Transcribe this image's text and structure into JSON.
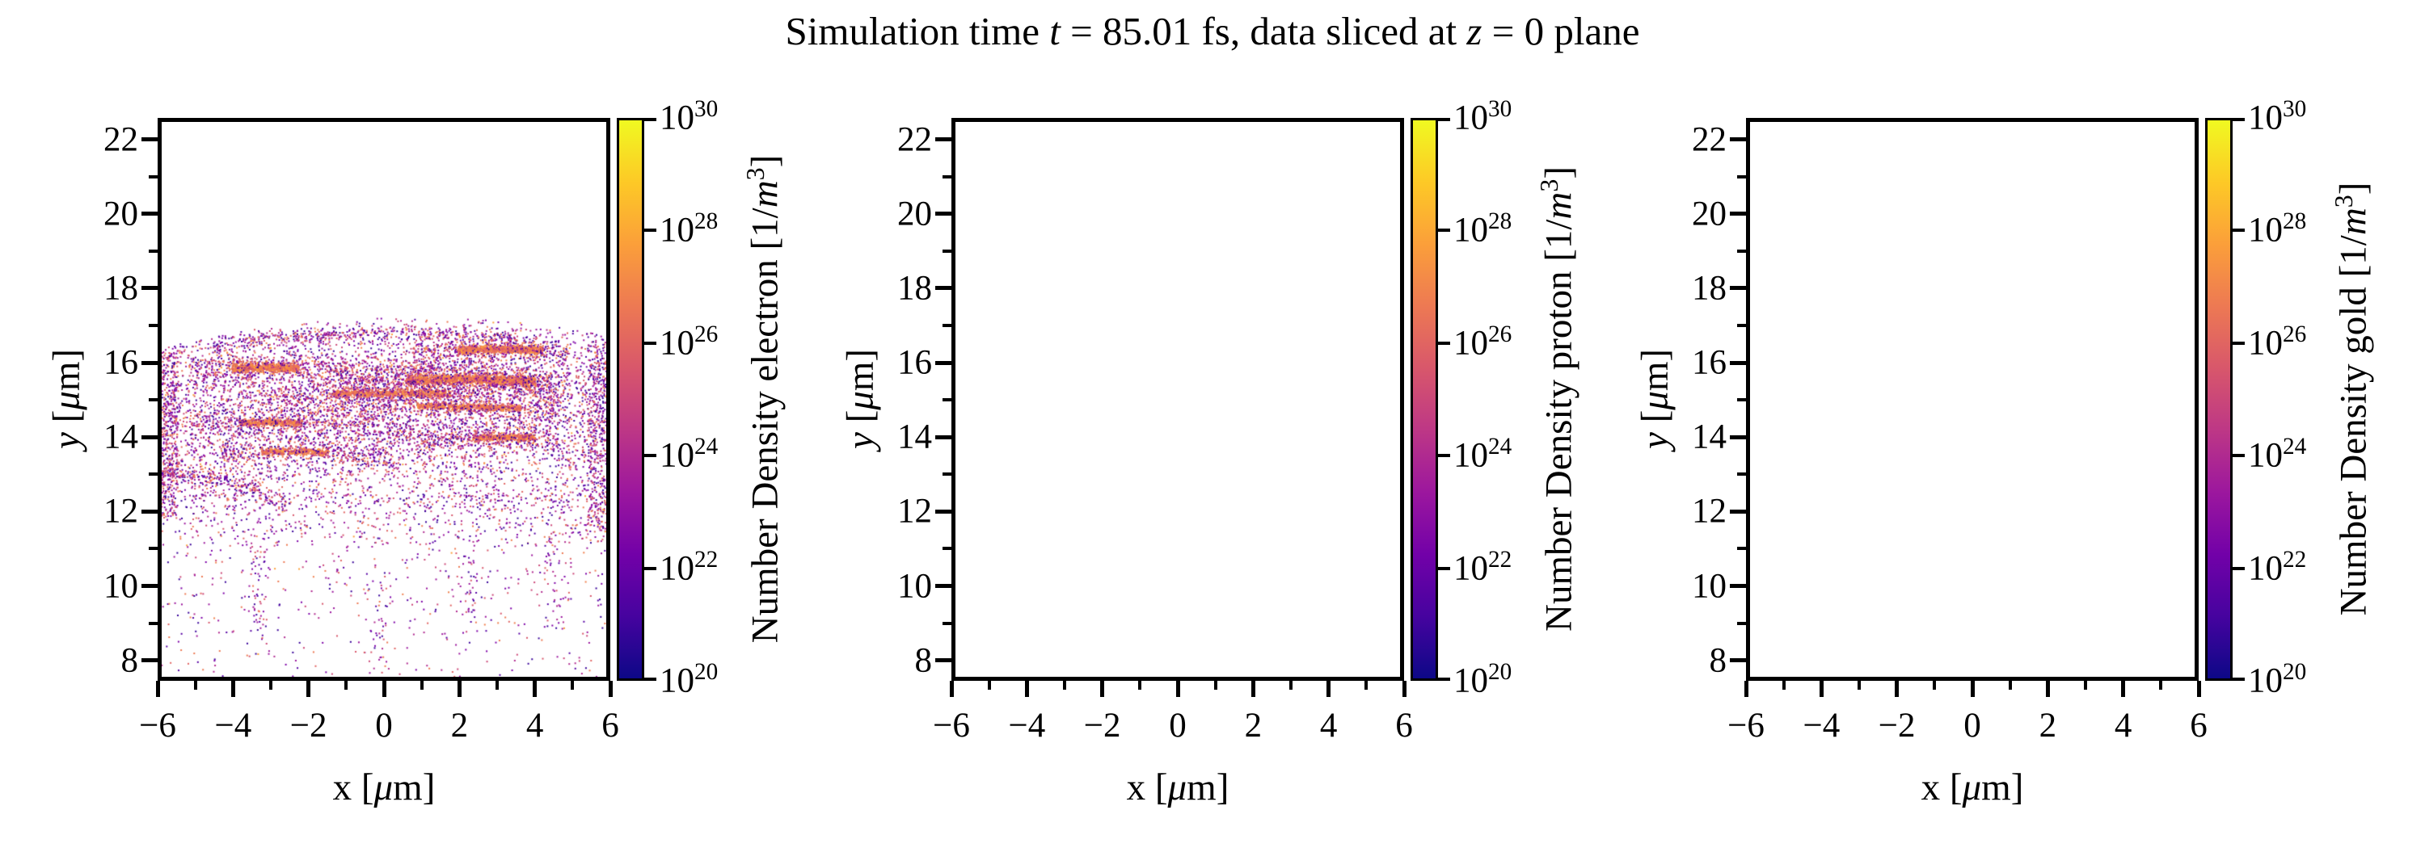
{
  "title": {
    "full": "Simulation time t = 85.01 fs, data sliced at z = 0 plane",
    "prefix": "Simulation time ",
    "t_symbol": "t",
    "middle": " = 85.01 fs, data sliced at ",
    "z_symbol": "z",
    "suffix": " = 0 plane"
  },
  "colors": {
    "background": "#ffffff",
    "spine": "#000000",
    "tick": "#000000",
    "text": "#000000",
    "plasma_stops": [
      "#0d0887",
      "#46039f",
      "#7201a8",
      "#9c179e",
      "#bd3786",
      "#d8576b",
      "#ed7953",
      "#fb9f3a",
      "#fdc926",
      "#f0f921"
    ]
  },
  "axes": {
    "xlim": [
      -6,
      6
    ],
    "ylim": [
      7.45,
      22.58
    ],
    "x_major": [
      -6,
      -4,
      -2,
      0,
      2,
      4,
      6
    ],
    "x_major_labels": [
      "−6",
      "−4",
      "−2",
      "0",
      "2",
      "4",
      "6"
    ],
    "x_minor": [
      -5,
      -3,
      -1,
      1,
      3,
      5
    ],
    "y_major": [
      8,
      10,
      12,
      14,
      16,
      18,
      20,
      22
    ],
    "y_major_labels": [
      "8",
      "10",
      "12",
      "14",
      "16",
      "18",
      "20",
      "22"
    ],
    "y_minor": [
      9,
      11,
      13,
      15,
      17,
      19,
      21
    ],
    "cbar_base": "10",
    "cbar_tick_exponents": [
      30,
      28,
      26,
      24,
      22,
      20
    ]
  },
  "panels": [
    {
      "species": "electron",
      "xlabel": "x [μm]",
      "ylabel": "y [μm]",
      "xlabel_var": "x",
      "ylabel_var": "y",
      "unit_open": " [",
      "unit_mu": "μ",
      "unit_close": "m]",
      "cbar_label": "Number Density electron [1/m³]",
      "cbar_text": "Number Density electron [1/",
      "cbar_var": "m",
      "cbar_sup": "3",
      "cbar_end": "]"
    },
    {
      "species": "proton",
      "xlabel": "x [μm]",
      "ylabel": "y [μm]",
      "xlabel_var": "x",
      "ylabel_var": "y",
      "unit_open": " [",
      "unit_mu": "μ",
      "unit_close": "m]",
      "cbar_label": "Number Density proton [1/m³]",
      "cbar_text": "Number Density proton [1/",
      "cbar_var": "m",
      "cbar_sup": "3",
      "cbar_end": "]"
    },
    {
      "species": "gold",
      "xlabel": "x [μm]",
      "ylabel": "y [μm]",
      "xlabel_var": "x",
      "ylabel_var": "y",
      "unit_open": " [",
      "unit_mu": "μ",
      "unit_close": "m]",
      "cbar_label": "Number Density gold [1/m³]",
      "cbar_text": "Number Density gold [1/",
      "cbar_var": "m",
      "cbar_sup": "3",
      "cbar_end": "]"
    }
  ],
  "chart_data": [
    {
      "type": "scatter",
      "species": "electron",
      "xlabel": "x [μm]",
      "ylabel": "y [μm]",
      "xlim": [
        -6,
        6
      ],
      "ylim": [
        7.45,
        22.58
      ],
      "colorbar": {
        "label": "Number Density electron [1/m³]",
        "scale": "log",
        "vmin": 1e+20,
        "vmax": 1e+30,
        "ticks": [
          1e+30,
          1e+28,
          1e+26,
          1e+24,
          1e+22,
          1e+20
        ],
        "cmap": "plasma"
      },
      "description": "Sparse 2px-cell density scatter; arc-shaped shell bands with bright orange cores between y=13.4 and y=16.9, diffuse purple halo cloud y≈11–17.2, sparse tail down to y≈7.5, empty above y≈17.3",
      "data_model": {
        "seed": 1337,
        "point_size": 2,
        "palette_sparse": [
          [
            "#3a049a",
            13
          ],
          [
            "#5601a4",
            11
          ],
          [
            "#7e03a8",
            17
          ],
          [
            "#9c179e",
            16
          ],
          [
            "#b12a90",
            14
          ],
          [
            "#cc4778",
            11
          ],
          [
            "#d8576b",
            7
          ],
          [
            "#e16462",
            6
          ],
          [
            "#ed7953",
            5
          ]
        ],
        "palette_core": [
          [
            "#ed7953",
            28
          ],
          [
            "#f0804f",
            30
          ],
          [
            "#fb9f3a",
            18
          ],
          [
            "#e16462",
            24
          ]
        ],
        "bands": [
          {
            "apex_x": 0.3,
            "apex_y": 16.82,
            "curv": 0.013,
            "x0": -4.6,
            "x1": 3.6,
            "sigma": 0.09,
            "n": 430,
            "core_frac": 0.15
          },
          {
            "apex_x": 3.0,
            "apex_y": 16.38,
            "curv": 0.03,
            "x0": 0.8,
            "x1": 5.0,
            "sigma": 0.2,
            "n": 450,
            "core_frac": 0.2,
            "core": {
              "x0": 2.0,
              "x1": 4.3,
              "n": 850,
              "sigma": 0.055
            }
          },
          {
            "apex_x": -3.2,
            "apex_y": 15.88,
            "curv": 0.009,
            "x0": -5.3,
            "x1": 4.7,
            "sigma": 0.22,
            "n": 1000,
            "core_frac": 0.2,
            "core": {
              "x0": -4.1,
              "x1": -2.3,
              "n": 800,
              "sigma": 0.06
            }
          },
          {
            "apex_x": 1.8,
            "apex_y": 15.55,
            "curv": 0.01,
            "x0": -1.2,
            "x1": 4.9,
            "sigma": 0.2,
            "n": 550,
            "core_frac": 0.25,
            "core": {
              "x0": 0.6,
              "x1": 4.1,
              "n": 1250,
              "sigma": 0.07
            }
          },
          {
            "apex_x": 0.4,
            "apex_y": 15.18,
            "curv": 0.008,
            "x0": -3.4,
            "x1": 3.0,
            "sigma": 0.18,
            "n": 480,
            "core_frac": 0.2,
            "core": {
              "x0": -1.4,
              "x1": 1.8,
              "n": 650,
              "sigma": 0.05
            }
          },
          {
            "apex_x": 1.6,
            "apex_y": 14.82,
            "curv": 0.011,
            "x0": -2.4,
            "x1": 4.9,
            "sigma": 0.18,
            "n": 480,
            "core_frac": 0.2,
            "core": {
              "x0": 0.9,
              "x1": 3.7,
              "n": 560,
              "sigma": 0.05
            }
          },
          {
            "apex_x": -3.0,
            "apex_y": 14.38,
            "curv": 0.02,
            "x0": -5.2,
            "x1": 0.8,
            "sigma": 0.2,
            "n": 420,
            "core_frac": 0.18,
            "core": {
              "x0": -3.9,
              "x1": -2.2,
              "n": 430,
              "sigma": 0.05
            }
          },
          {
            "apex_x": 3.2,
            "apex_y": 13.98,
            "curv": 0.026,
            "x0": 0.9,
            "x1": 4.7,
            "sigma": 0.18,
            "n": 360,
            "core_frac": 0.18,
            "core": {
              "x0": 2.4,
              "x1": 4.1,
              "n": 400,
              "sigma": 0.05
            }
          },
          {
            "apex_x": -2.4,
            "apex_y": 13.58,
            "curv": 0.022,
            "x0": -4.4,
            "x1": 0.3,
            "sigma": 0.18,
            "n": 350,
            "core_frac": 0.18,
            "core": {
              "x0": -3.3,
              "x1": -1.5,
              "n": 360,
              "sigma": 0.05
            }
          },
          {
            "apex_x": -5.9,
            "apex_y": 12.95,
            "curv": 0.075,
            "x0": -6.0,
            "x1": -2.6,
            "sigma": 0.12,
            "n": 240,
            "core_frac": 0.1
          }
        ],
        "noise": {
          "n": 5200,
          "y_peak": 14.7,
          "y_sigma": 1.7,
          "y_min": 11.0,
          "top_apex_x": 0.8,
          "top_apex_y": 17.25,
          "top_curv": 0.018,
          "core_frac": 0.08
        },
        "lower_noise": {
          "n": 780,
          "y0": 7.45,
          "y1": 12.4,
          "power": 1.8,
          "core_frac": 0.05
        },
        "edge_clusters": [
          {
            "x0": -6.0,
            "x1": -5.55,
            "y0": 11.8,
            "y1": 16.35,
            "n": 360
          },
          {
            "x0": 5.5,
            "x1": 6.0,
            "y0": 11.4,
            "y1": 16.6,
            "n": 340
          }
        ],
        "streaks": [
          {
            "x": -3.4,
            "sx": 0.15,
            "y0": 8.2,
            "y1": 11.0,
            "n": 55
          },
          {
            "x": -0.1,
            "sx": 0.2,
            "y0": 7.5,
            "y1": 10.2,
            "n": 50
          },
          {
            "x": 2.3,
            "sx": 0.18,
            "y0": 8.6,
            "y1": 11.2,
            "n": 45
          },
          {
            "x": 4.6,
            "sx": 0.2,
            "y0": 8.8,
            "y1": 11.6,
            "n": 45
          }
        ]
      }
    },
    {
      "type": "scatter",
      "species": "proton",
      "xlabel": "x [μm]",
      "ylabel": "y [μm]",
      "xlim": [
        -6,
        6
      ],
      "ylim": [
        7.45,
        22.58
      ],
      "colorbar": {
        "label": "Number Density proton [1/m³]",
        "scale": "log",
        "vmin": 1e+20,
        "vmax": 1e+30,
        "ticks": [
          1e+30,
          1e+28,
          1e+26,
          1e+24,
          1e+22,
          1e+20
        ],
        "cmap": "plasma"
      },
      "points": [],
      "empty": true
    },
    {
      "type": "scatter",
      "species": "gold",
      "xlabel": "x [μm]",
      "ylabel": "y [μm]",
      "xlim": [
        -6,
        6
      ],
      "ylim": [
        7.45,
        22.58
      ],
      "colorbar": {
        "label": "Number Density gold [1/m³]",
        "scale": "log",
        "vmin": 1e+20,
        "vmax": 1e+30,
        "ticks": [
          1e+30,
          1e+28,
          1e+26,
          1e+24,
          1e+22,
          1e+20
        ],
        "cmap": "plasma"
      },
      "points": [],
      "empty": true
    }
  ]
}
